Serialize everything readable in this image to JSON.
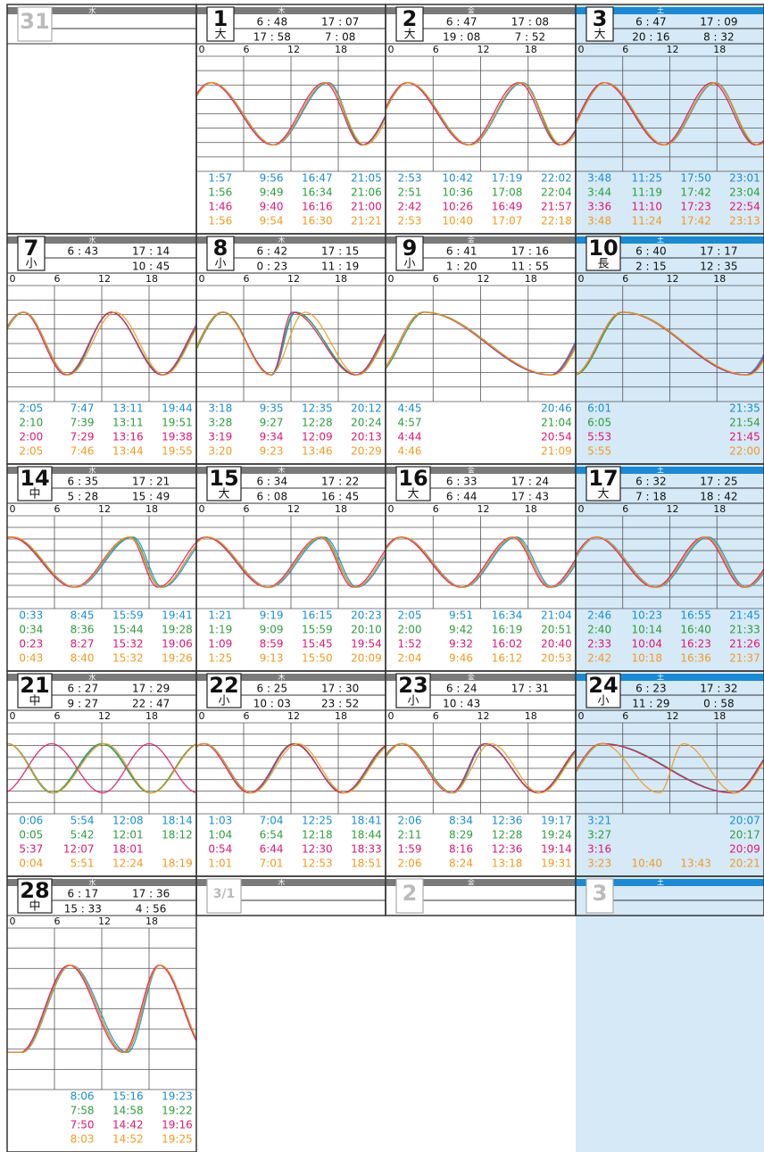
{
  "hour_ticks": [
    0,
    6,
    12,
    18
  ],
  "series_colors": [
    "#1a8fd2",
    "#2f9e3b",
    "#e3176e",
    "#f39a1e"
  ],
  "rows": [
    [
      {
        "day": "31",
        "weekday": "水"
      },
      {
        "day": "1",
        "weekday": "木",
        "tide": "大",
        "sun": [
          "6 : 48",
          "17 : 07"
        ],
        "moon": [
          "17 : 58",
          "7 : 08"
        ],
        "tides": [
          [
            "1:57",
            "9:56",
            "16:47",
            "21:05"
          ],
          [
            "1:56",
            "9:49",
            "16:34",
            "21:06"
          ],
          [
            "1:46",
            "9:40",
            "16:16",
            "21:00"
          ],
          [
            "1:56",
            "9:54",
            "16:30",
            "21:21"
          ]
        ]
      },
      {
        "day": "2",
        "weekday": "金",
        "tide": "大",
        "sun": [
          "6 : 47",
          "17 : 08"
        ],
        "moon": [
          "19 : 08",
          "7 : 52"
        ],
        "tides": [
          [
            "2:53",
            "10:42",
            "17:19",
            "22:02"
          ],
          [
            "2:51",
            "10:36",
            "17:08",
            "22:04"
          ],
          [
            "2:42",
            "10:26",
            "16:49",
            "21:57"
          ],
          [
            "2:53",
            "10:40",
            "17:07",
            "22:18"
          ]
        ]
      },
      {
        "day": "3",
        "weekday": "土",
        "tide": "大",
        "sun": [
          "6 : 47",
          "17 : 09"
        ],
        "moon": [
          "20 : 16",
          "8 : 32"
        ],
        "tides": [
          [
            "3:48",
            "11:25",
            "17:50",
            "23:01"
          ],
          [
            "3:44",
            "11:19",
            "17:42",
            "23:04"
          ],
          [
            "3:36",
            "11:10",
            "17:23",
            "22:54"
          ],
          [
            "3:48",
            "11:24",
            "17:42",
            "23:13"
          ]
        ]
      }
    ],
    [
      {
        "day": "7",
        "weekday": "水",
        "tide": "小",
        "sun": [
          "6 : 43",
          "17 : 14"
        ],
        "moon": [
          null,
          "10 : 45"
        ],
        "tides": [
          [
            "2:05",
            "7:47",
            "13:11",
            "19:44"
          ],
          [
            "2:10",
            "7:39",
            "13:11",
            "19:51"
          ],
          [
            "2:00",
            "7:29",
            "13:16",
            "19:38"
          ],
          [
            "2:05",
            "7:46",
            "13:44",
            "19:55"
          ]
        ]
      },
      {
        "day": "8",
        "weekday": "木",
        "tide": "小",
        "sun": [
          "6 : 42",
          "17 : 15"
        ],
        "moon": [
          "0 : 23",
          "11 : 19"
        ],
        "tides": [
          [
            "3:18",
            "9:35",
            "12:35",
            "20:12"
          ],
          [
            "3:28",
            "9:27",
            "12:28",
            "20:24"
          ],
          [
            "3:19",
            "9:34",
            "12:09",
            "20:13"
          ],
          [
            "3:20",
            "9:23",
            "13:46",
            "20:29"
          ]
        ]
      },
      {
        "day": "9",
        "weekday": "金",
        "tide": "小",
        "sun": [
          "6 : 41",
          "17 : 16"
        ],
        "moon": [
          "1 : 20",
          "11 : 55"
        ],
        "tides": [
          [
            "4:45",
            null,
            null,
            "20:46"
          ],
          [
            "4:57",
            null,
            null,
            "21:04"
          ],
          [
            "4:44",
            null,
            null,
            "20:54"
          ],
          [
            "4:46",
            null,
            null,
            "21:09"
          ]
        ]
      },
      {
        "day": "10",
        "weekday": "土",
        "tide": "長",
        "sun": [
          "6 : 40",
          "17 : 17"
        ],
        "moon": [
          "2 : 15",
          "12 : 35"
        ],
        "tides": [
          [
            "6:01",
            null,
            null,
            "21:35"
          ],
          [
            "6:05",
            null,
            null,
            "21:54"
          ],
          [
            "5:53",
            null,
            null,
            "21:45"
          ],
          [
            "5:55",
            null,
            null,
            "22:00"
          ]
        ]
      }
    ],
    [
      {
        "day": "14",
        "weekday": "水",
        "tide": "中",
        "sun": [
          "6 : 35",
          "17 : 21"
        ],
        "moon": [
          "5 : 28",
          "15 : 49"
        ],
        "tides": [
          [
            "0:33",
            "8:45",
            "15:59",
            "19:41"
          ],
          [
            "0:34",
            "8:36",
            "15:44",
            "19:28"
          ],
          [
            "0:23",
            "8:27",
            "15:32",
            "19:06"
          ],
          [
            "0:43",
            "8:40",
            "15:32",
            "19:26"
          ]
        ]
      },
      {
        "day": "15",
        "weekday": "木",
        "tide": "大",
        "sun": [
          "6 : 34",
          "17 : 22"
        ],
        "moon": [
          "6 : 08",
          "16 : 45"
        ],
        "tides": [
          [
            "1:21",
            "9:19",
            "16:15",
            "20:23"
          ],
          [
            "1:19",
            "9:09",
            "15:59",
            "20:10"
          ],
          [
            "1:09",
            "8:59",
            "15:45",
            "19:54"
          ],
          [
            "1:25",
            "9:13",
            "15:50",
            "20:09"
          ]
        ]
      },
      {
        "day": "16",
        "weekday": "金",
        "tide": "大",
        "sun": [
          "6 : 33",
          "17 : 24"
        ],
        "moon": [
          "6 : 44",
          "17 : 43"
        ],
        "tides": [
          [
            "2:05",
            "9:51",
            "16:34",
            "21:04"
          ],
          [
            "2:00",
            "9:42",
            "16:19",
            "20:51"
          ],
          [
            "1:52",
            "9:32",
            "16:02",
            "20:40"
          ],
          [
            "2:04",
            "9:46",
            "16:12",
            "20:53"
          ]
        ]
      },
      {
        "day": "17",
        "weekday": "土",
        "tide": "大",
        "sun": [
          "6 : 32",
          "17 : 25"
        ],
        "moon": [
          "7 : 18",
          "18 : 42"
        ],
        "tides": [
          [
            "2:46",
            "10:23",
            "16:55",
            "21:45"
          ],
          [
            "2:40",
            "10:14",
            "16:40",
            "21:33"
          ],
          [
            "2:33",
            "10:04",
            "16:23",
            "21:26"
          ],
          [
            "2:42",
            "10:18",
            "16:36",
            "21:37"
          ]
        ]
      }
    ],
    [
      {
        "day": "21",
        "weekday": "水",
        "tide": "中",
        "sun": [
          "6 : 27",
          "17 : 29"
        ],
        "moon": [
          "9 : 27",
          "22 : 47"
        ],
        "tides": [
          [
            "0:06",
            "5:54",
            "12:08",
            "18:14"
          ],
          [
            "0:05",
            "5:42",
            "12:01",
            "18:12"
          ],
          [
            "5:37",
            "12:07",
            "18:01",
            null
          ],
          [
            "0:04",
            "5:51",
            "12:24",
            "18:19"
          ]
        ]
      },
      {
        "day": "22",
        "weekday": "木",
        "tide": "小",
        "sun": [
          "6 : 25",
          "17 : 30"
        ],
        "moon": [
          "10 : 03",
          "23 : 52"
        ],
        "tides": [
          [
            "1:03",
            "7:04",
            "12:25",
            "18:41"
          ],
          [
            "1:04",
            "6:54",
            "12:18",
            "18:44"
          ],
          [
            "0:54",
            "6:44",
            "12:30",
            "18:33"
          ],
          [
            "1:01",
            "7:01",
            "12:53",
            "18:51"
          ]
        ]
      },
      {
        "day": "23",
        "weekday": "金",
        "tide": "小",
        "sun": [
          "6 : 24",
          "17 : 31"
        ],
        "moon": [
          "10 : 43",
          null
        ],
        "tides": [
          [
            "2:06",
            "8:34",
            "12:36",
            "19:17"
          ],
          [
            "2:11",
            "8:29",
            "12:28",
            "19:24"
          ],
          [
            "1:59",
            "8:16",
            "12:36",
            "19:14"
          ],
          [
            "2:06",
            "8:24",
            "13:18",
            "19:31"
          ]
        ]
      },
      {
        "day": "24",
        "weekday": "土",
        "tide": "小",
        "sun": [
          "6 : 23",
          "17 : 32"
        ],
        "moon": [
          "11 : 29",
          "0 : 58"
        ],
        "tides": [
          [
            "3:21",
            null,
            null,
            "20:07"
          ],
          [
            "3:27",
            null,
            null,
            "20:17"
          ],
          [
            "3:16",
            null,
            null,
            "20:09"
          ],
          [
            "3:23",
            "10:40",
            "13:43",
            "20:21"
          ]
        ]
      }
    ],
    [
      {
        "day": "28",
        "weekday": "水",
        "tide": "中",
        "sun": [
          "6 : 17",
          "17 : 36"
        ],
        "moon": [
          "15 : 33",
          "4 : 56"
        ],
        "tides": [
          [
            null,
            "8:06",
            "15:16",
            "19:23"
          ],
          [
            null,
            "7:58",
            "14:58",
            "19:22"
          ],
          [
            null,
            "7:50",
            "14:42",
            "19:16"
          ],
          [
            null,
            "8:03",
            "14:52",
            "19:25"
          ]
        ]
      },
      {
        "day": "3/1",
        "weekday": "木"
      },
      {
        "day": "2",
        "weekday": "金"
      },
      {
        "day": "3",
        "weekday": "土"
      }
    ]
  ]
}
